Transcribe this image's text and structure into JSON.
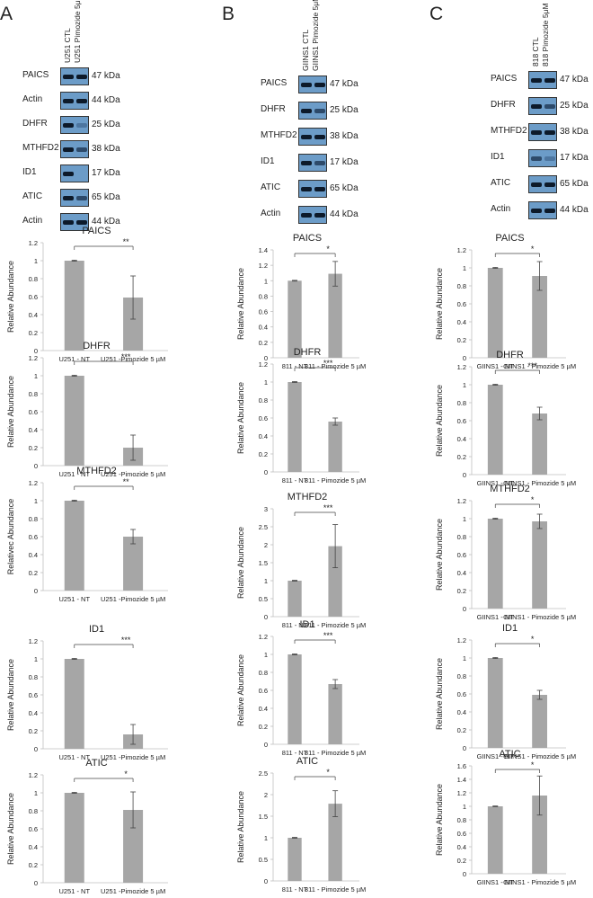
{
  "panels": [
    {
      "letter": "A",
      "lanes": [
        "U251 CTL",
        "U251 Pimozide 5μM"
      ],
      "blots": [
        {
          "name": "PAICS",
          "kda": "47 kDa",
          "pattern": [
            "dark",
            "dark"
          ]
        },
        {
          "name": "Actin",
          "kda": "44 kDa",
          "pattern": [
            "dark",
            "dark"
          ]
        },
        {
          "name": "DHFR",
          "kda": "25 kDa",
          "pattern": [
            "dark",
            "faint"
          ]
        },
        {
          "name": "MTHFD2",
          "kda": "38 kDa",
          "pattern": [
            "dark",
            "mid"
          ]
        },
        {
          "name": "ID1",
          "kda": "17 kDa",
          "pattern": [
            "dark",
            "none"
          ]
        },
        {
          "name": "ATIC",
          "kda": "65 kDa",
          "pattern": [
            "dark",
            "mid"
          ]
        },
        {
          "name": "Actin",
          "kda": "44 kDa",
          "pattern": [
            "dark",
            "dark"
          ]
        }
      ]
    },
    {
      "letter": "B",
      "lanes": [
        "GIINS1 CTL",
        "GIINS1 Pimozide 5μM"
      ],
      "blots": [
        {
          "name": "PAICS",
          "kda": "47 kDa",
          "pattern": [
            "dark",
            "dark"
          ]
        },
        {
          "name": "DHFR",
          "kda": "25 kDa",
          "pattern": [
            "dark",
            "mid"
          ]
        },
        {
          "name": "MTHFD2",
          "kda": "38 kDa",
          "pattern": [
            "dark",
            "dark"
          ]
        },
        {
          "name": "ID1",
          "kda": "17 kDa",
          "pattern": [
            "dark",
            "mid"
          ]
        },
        {
          "name": "ATIC",
          "kda": "65 kDa",
          "pattern": [
            "dark",
            "dark"
          ]
        },
        {
          "name": "Actin",
          "kda": "44 kDa",
          "pattern": [
            "dark",
            "dark"
          ]
        }
      ]
    },
    {
      "letter": "C",
      "lanes": [
        "818 CTL",
        "818 Pimozide 5μM"
      ],
      "blots": [
        {
          "name": "PAICS",
          "kda": "47 kDa",
          "pattern": [
            "dark",
            "dark"
          ]
        },
        {
          "name": "DHFR",
          "kda": "25 kDa",
          "pattern": [
            "dark",
            "mid"
          ]
        },
        {
          "name": "MTHFD2",
          "kda": "38 kDa",
          "pattern": [
            "dark",
            "dark"
          ]
        },
        {
          "name": "ID1",
          "kda": "17 kDa",
          "pattern": [
            "mid",
            "faint"
          ]
        },
        {
          "name": "ATIC",
          "kda": "65 kDa",
          "pattern": [
            "dark",
            "dark"
          ]
        },
        {
          "name": "Actin",
          "kda": "44 kDa",
          "pattern": [
            "dark",
            "dark"
          ]
        }
      ]
    }
  ],
  "chart_data": [
    {
      "type": "bar",
      "panel": "A",
      "title": "PAICS",
      "ylabel": "Relative Abundance",
      "categories": [
        "U251 - NT",
        "U251 -Pimozide 5  µM"
      ],
      "values": [
        1.0,
        0.59
      ],
      "errors": [
        0.005,
        0.24
      ],
      "ylim": [
        0,
        1.2
      ],
      "yticks": [
        "0",
        "0.2",
        "0.4",
        "0.6",
        "0.8",
        "1",
        "1.2"
      ],
      "significance": "**"
    },
    {
      "type": "bar",
      "panel": "A",
      "title": "DHFR",
      "ylabel": "Relative Abundance",
      "categories": [
        "U251 - NT",
        "U251 -Pimozide 5  µM"
      ],
      "values": [
        1.0,
        0.2
      ],
      "errors": [
        0.005,
        0.14
      ],
      "ylim": [
        0,
        1.2
      ],
      "yticks": [
        "0",
        "0.2",
        "0.4",
        "0.6",
        "0.8",
        "1",
        "1.2"
      ],
      "significance": "***"
    },
    {
      "type": "bar",
      "panel": "A",
      "title": "MTHFD2",
      "ylabel": "Relativec Abundance",
      "categories": [
        "U251 - NT",
        "U251 -Pimozide 5  µM"
      ],
      "values": [
        1.0,
        0.6
      ],
      "errors": [
        0.005,
        0.08
      ],
      "ylim": [
        0,
        1.2
      ],
      "yticks": [
        "0",
        "0.2",
        "0.4",
        "0.6",
        "0.8",
        "1",
        "1.2"
      ],
      "significance": "**"
    },
    {
      "type": "bar",
      "panel": "A",
      "title": "ID1",
      "ylabel": "Relative Abundance",
      "categories": [
        "U251 - NT",
        "U251 -Pimozide 5  µM"
      ],
      "values": [
        1.0,
        0.16
      ],
      "errors": [
        0.005,
        0.11
      ],
      "ylim": [
        0,
        1.2
      ],
      "yticks": [
        "0",
        "0.2",
        "0.4",
        "0.6",
        "0.8",
        "1",
        "1.2"
      ],
      "significance": "***"
    },
    {
      "type": "bar",
      "panel": "A",
      "title": "ATIC",
      "ylabel": "Relative Abundance",
      "categories": [
        "U251 - NT",
        "U251 -Pimozide 5  µM"
      ],
      "values": [
        1.0,
        0.81
      ],
      "errors": [
        0.005,
        0.2
      ],
      "ylim": [
        0,
        1.2
      ],
      "yticks": [
        "0",
        "0.2",
        "0.4",
        "0.6",
        "0.8",
        "1",
        "1.2"
      ],
      "significance": "*"
    },
    {
      "type": "bar",
      "panel": "B",
      "title": "PAICS",
      "ylabel": "Relative Abundance",
      "categories": [
        "811 - NT",
        "811 - Pimozide 5 µM"
      ],
      "values": [
        1.0,
        1.09
      ],
      "errors": [
        0.005,
        0.16
      ],
      "ylim": [
        0,
        1.4
      ],
      "yticks": [
        "0",
        "0.2",
        "0.4",
        "0.6",
        "0.8",
        "1",
        "1.2",
        "1.4"
      ],
      "significance": "*"
    },
    {
      "type": "bar",
      "panel": "B",
      "title": "DHFR",
      "ylabel": "Relative Abundance",
      "categories": [
        "811 - NT",
        "811 - Pimozide 5 µM"
      ],
      "values": [
        1.0,
        0.56
      ],
      "errors": [
        0.005,
        0.04
      ],
      "ylim": [
        0,
        1.2
      ],
      "yticks": [
        "0",
        "0.2",
        "0.4",
        "0.6",
        "0.8",
        "1",
        "1.2"
      ],
      "significance": "***"
    },
    {
      "type": "bar",
      "panel": "B",
      "title": "MTHFD2",
      "ylabel": "Relative Abundance",
      "categories": [
        "811 - NT",
        "811 - Pimozide 5 µM"
      ],
      "values": [
        1.0,
        1.96
      ],
      "errors": [
        0.01,
        0.6
      ],
      "ylim": [
        0,
        3
      ],
      "yticks": [
        "0",
        "0.5",
        "1",
        "1.5",
        "2",
        "2.5",
        "3"
      ],
      "significance": "***"
    },
    {
      "type": "bar",
      "panel": "B",
      "title": "ID1",
      "ylabel": "Relative Abundance",
      "categories": [
        "811 - NT",
        "811 - Pimozide 5 µM"
      ],
      "values": [
        1.0,
        0.67
      ],
      "errors": [
        0.005,
        0.05
      ],
      "ylim": [
        0,
        1.2
      ],
      "yticks": [
        "0",
        "0.2",
        "0.4",
        "0.6",
        "0.8",
        "1",
        "1.2"
      ],
      "significance": "***"
    },
    {
      "type": "bar",
      "panel": "B",
      "title": "ATIC",
      "ylabel": "Relative Abundance",
      "categories": [
        "811 - NT",
        "811 - Pimozide 5 µM"
      ],
      "values": [
        1.0,
        1.79
      ],
      "errors": [
        0.01,
        0.3
      ],
      "ylim": [
        0,
        2.5
      ],
      "yticks": [
        "0",
        "0.5",
        "1",
        "1.5",
        "2",
        "2.5"
      ],
      "significance": "*"
    },
    {
      "type": "bar",
      "panel": "C",
      "title": "PAICS",
      "ylabel": "Relative Abundance",
      "categories": [
        "GIINS1 - NT",
        "GIINS1 - Pimozide 5 µM"
      ],
      "values": [
        1.0,
        0.91
      ],
      "errors": [
        0.005,
        0.16
      ],
      "ylim": [
        0,
        1.2
      ],
      "yticks": [
        "0",
        "0.2",
        "0.4",
        "0.6",
        "0.8",
        "1",
        "1.2"
      ],
      "significance": "*"
    },
    {
      "type": "bar",
      "panel": "C",
      "title": "DHFR",
      "ylabel": "Relative Abundance",
      "categories": [
        "GIINS1 - NT",
        "GIINS1 - Pimozide 5 µM"
      ],
      "values": [
        1.0,
        0.68
      ],
      "errors": [
        0.005,
        0.07
      ],
      "ylim": [
        0,
        1.2
      ],
      "yticks": [
        "0",
        "0.2",
        "0.4",
        "0.6",
        "0.8",
        "1",
        "1.2"
      ],
      "significance": "***"
    },
    {
      "type": "bar",
      "panel": "C",
      "title": "MTHFD2",
      "ylabel": "Relative Abundance",
      "categories": [
        "GIINS1 - NT",
        "GIINS1 - Pimozide 5 µM"
      ],
      "values": [
        1.0,
        0.97
      ],
      "errors": [
        0.005,
        0.08
      ],
      "ylim": [
        0,
        1.2
      ],
      "yticks": [
        "0",
        "0.2",
        "0.4",
        "0.6",
        "0.8",
        "1",
        "1.2"
      ],
      "significance": "*"
    },
    {
      "type": "bar",
      "panel": "C",
      "title": "ID1",
      "ylabel": "Relative Abundance",
      "categories": [
        "GIINS1 - NT",
        "GIINS1 - Pimozide 5 µM"
      ],
      "values": [
        1.0,
        0.59
      ],
      "errors": [
        0.005,
        0.05
      ],
      "ylim": [
        0,
        1.2
      ],
      "yticks": [
        "0",
        "0.2",
        "0.4",
        "0.6",
        "0.8",
        "1",
        "1.2"
      ],
      "significance": "*"
    },
    {
      "type": "bar",
      "panel": "C",
      "title": "ATIC",
      "ylabel": "Relative Abundance",
      "categories": [
        "GIINS1 - NT",
        "GIINS1 - Pimozide 5 µM"
      ],
      "values": [
        1.0,
        1.16
      ],
      "errors": [
        0.005,
        0.29
      ],
      "ylim": [
        0,
        1.6
      ],
      "yticks": [
        "0",
        "0.2",
        "0.4",
        "0.6",
        "0.8",
        "1",
        "1.2",
        "1.4",
        "1.6"
      ],
      "significance": "*"
    }
  ],
  "colors": {
    "bar": "#a6a6a6",
    "axis": "#bfbfbf",
    "text": "#222222",
    "band_bg": "#6c9cc8",
    "band_dark": "#0d1a2a"
  }
}
